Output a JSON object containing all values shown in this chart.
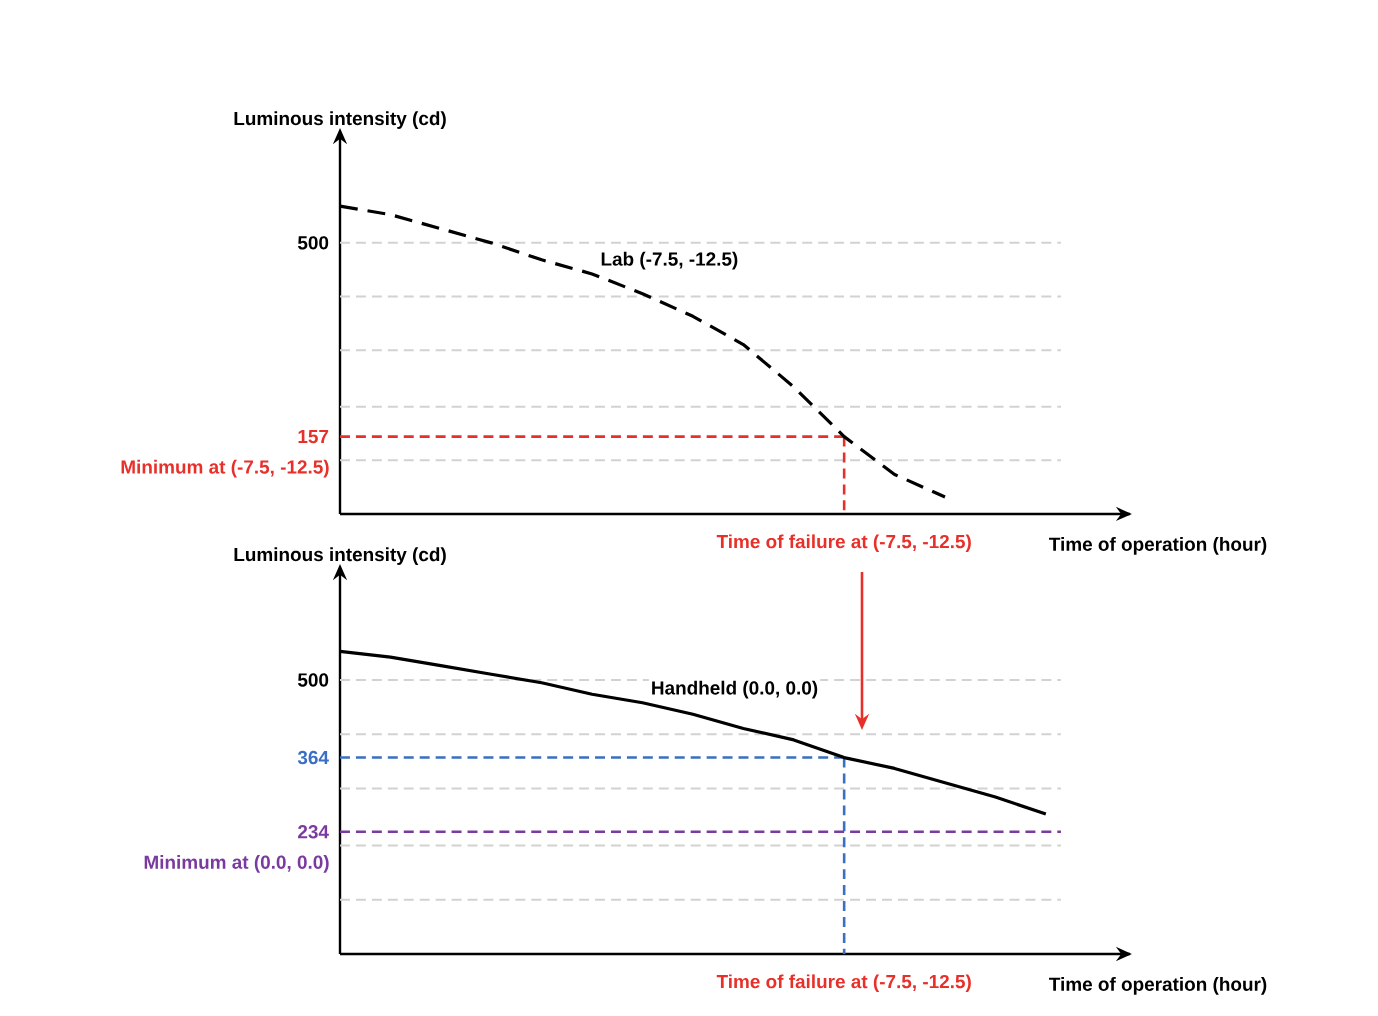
{
  "chart_data": [
    {
      "type": "line",
      "xlabel": "Time of operation (hour)",
      "ylabel": "Luminous intensity (cd)",
      "categories": [
        null,
        null,
        null,
        null,
        null,
        null,
        null,
        null,
        null,
        null,
        null,
        null,
        null
      ],
      "series": [
        {
          "name": "Lab (-7.5, -12.5)",
          "color": "#000000",
          "line_style": "dashed",
          "values": [
            565,
            550,
            525,
            500,
            470,
            445,
            410,
            370,
            320,
            245,
            157,
            90,
            50
          ]
        }
      ],
      "ylim": [
        20,
        675
      ],
      "yticks": [
        {
          "value": 115,
          "label": null
        },
        157,
        {
          "value": 210,
          "label": null
        },
        {
          "value": 310,
          "label": null
        },
        {
          "value": 405,
          "label": null
        },
        500
      ],
      "grid": "y",
      "tick_labels": "y",
      "annotations": [
        "Time of failure at (-7.5, -12.5)"
      ],
      "ref_lines": [
        {
          "axis": "y",
          "value": 157,
          "label": "Minimum at (-7.5, -12.5)",
          "color": "#e8302a",
          "line_style": "dashed"
        }
      ]
    },
    {
      "type": "line",
      "xlabel": "Time of operation (hour)",
      "ylabel": "Luminous intensity (cd)",
      "categories": [
        null,
        null,
        null,
        null,
        null,
        null,
        null,
        null,
        null,
        null,
        null,
        null,
        null,
        null,
        null
      ],
      "series": [
        {
          "name": "Handheld (0.0, 0.0)",
          "color": "#000000",
          "line_style": "solid",
          "values": [
            550,
            540,
            525,
            510,
            495,
            475,
            460,
            440,
            415,
            395,
            364,
            345,
            320,
            295,
            265
          ]
        }
      ],
      "ylim": [
        20,
        675
      ],
      "yticks": [
        {
          "value": 115,
          "label": null
        },
        {
          "value": 210,
          "label": null
        },
        234,
        {
          "value": 310,
          "label": null
        },
        364,
        {
          "value": 405,
          "label": null
        },
        500
      ],
      "grid": "y",
      "tick_labels": "y",
      "ref_lines": [
        {
          "axis": "y",
          "value": 364,
          "color": "#3a6fc4",
          "line_style": "dashed"
        },
        {
          "axis": "y",
          "value": 234,
          "label": "Minimum at (0.0, 0.0)",
          "color": "#7a3aa0",
          "line_style": "dashed"
        }
      ],
      "annotations": [
        "Time of failure at (-7.5, -12.5)"
      ]
    }
  ]
}
